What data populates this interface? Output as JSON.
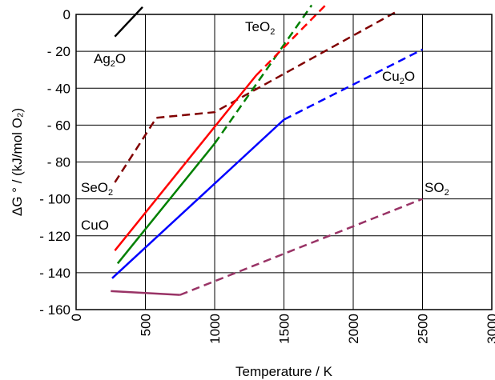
{
  "chart_data": {
    "type": "line",
    "xlabel": "Temperature / K",
    "ylabel": "ΔG ° / (kJ/mol O₂)",
    "xlim": [
      0,
      3000
    ],
    "ylim": [
      -160,
      0
    ],
    "x_ticks": [
      0,
      500,
      1000,
      1500,
      2000,
      2500,
      3000
    ],
    "x_tick_labels": [
      "0",
      "500",
      "1000",
      "1500",
      "2000",
      "2500",
      "3000"
    ],
    "y_ticks": [
      0,
      -20,
      -40,
      -60,
      -80,
      -100,
      -120,
      -140,
      -160
    ],
    "y_tick_labels": [
      "0",
      "- 20",
      "- 40",
      "- 60",
      "- 80",
      "- 100",
      "- 120",
      "- 140",
      "- 160"
    ],
    "grid": true,
    "colors": {
      "Ag2O": "#000000",
      "TeO2": "#008000",
      "SeO2": "#800000",
      "CuO": "#ff0000",
      "Cu2O": "#0000ff",
      "SO2": "#993366"
    },
    "series": [
      {
        "name": "Ag₂O",
        "label_main": "Ag",
        "label_sub": "2",
        "label_tail": "O",
        "segments": [
          {
            "style": "solid",
            "points": [
              [
                280,
                -12
              ],
              [
                480,
                4
              ]
            ]
          }
        ]
      },
      {
        "name": "TeO₂",
        "label_main": "TeO",
        "label_sub": "2",
        "label_tail": "",
        "segments": [
          {
            "style": "solid",
            "points": [
              [
                300,
                -135
              ],
              [
                1000,
                -70
              ]
            ]
          },
          {
            "style": "dashed",
            "points": [
              [
                1000,
                -70
              ],
              [
                1700,
                5
              ]
            ]
          }
        ]
      },
      {
        "name": "SeO₂",
        "label_main": "SeO",
        "label_sub": "2",
        "label_tail": "",
        "segments": [
          {
            "style": "dashed",
            "points": [
              [
                280,
                -91
              ],
              [
                580,
                -56
              ],
              [
                1000,
                -53
              ],
              [
                2300,
                1
              ]
            ]
          }
        ]
      },
      {
        "name": "CuO",
        "label_main": "CuO",
        "label_sub": "",
        "label_tail": "",
        "segments": [
          {
            "style": "solid",
            "points": [
              [
                280,
                -128
              ],
              [
                1300,
                -33
              ]
            ]
          },
          {
            "style": "dashed",
            "points": [
              [
                1300,
                -33
              ],
              [
                1800,
                5
              ]
            ]
          }
        ]
      },
      {
        "name": "Cu₂O",
        "label_main": "Cu",
        "label_sub": "2",
        "label_tail": "O",
        "segments": [
          {
            "style": "solid",
            "points": [
              [
                260,
                -143
              ],
              [
                1500,
                -57
              ]
            ]
          },
          {
            "style": "dashed",
            "points": [
              [
                1500,
                -57
              ],
              [
                2500,
                -19
              ]
            ]
          }
        ]
      },
      {
        "name": "SO₂",
        "label_main": "SO",
        "label_sub": "2",
        "label_tail": "",
        "segments": [
          {
            "style": "solid",
            "points": [
              [
                250,
                -150
              ],
              [
                750,
                -152
              ]
            ]
          },
          {
            "style": "dashed",
            "points": [
              [
                750,
                -152
              ],
              [
                2500,
                -100
              ]
            ]
          }
        ]
      }
    ]
  }
}
